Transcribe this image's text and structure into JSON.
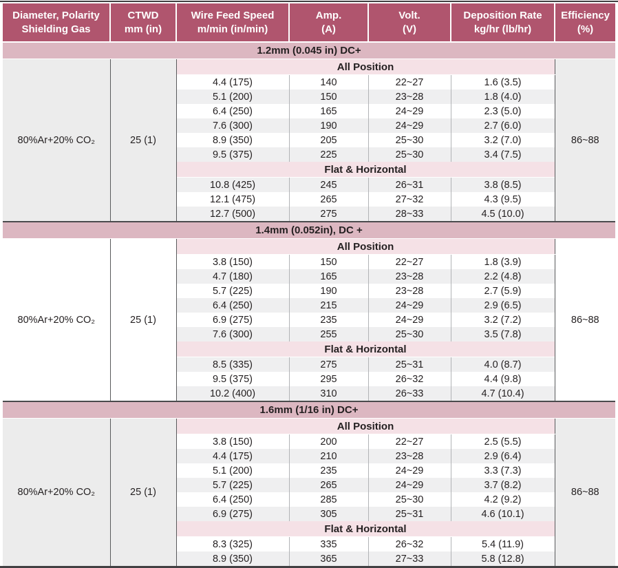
{
  "colors": {
    "header_bg": "#b0556e",
    "header_text": "#ffffff",
    "section_band_bg": "#dcb7c1",
    "position_band_bg": "#f5e1e6",
    "row_alt_bg": "#efeff0",
    "side_gray_bg": "#ececec",
    "body_text": "#231f20",
    "frame_line": "#414042",
    "divider_dark": "#58595b",
    "divider_light": "#b1b3b6"
  },
  "columns": [
    {
      "line1": "Diameter, Polarity",
      "line2": "Shielding Gas"
    },
    {
      "line1": "CTWD",
      "line2": "mm (in)"
    },
    {
      "line1": "Wire Feed Speed",
      "line2": "m/min (in/min)"
    },
    {
      "line1": "Amp.",
      "line2": "(A)"
    },
    {
      "line1": "Volt.",
      "line2": "(V)"
    },
    {
      "line1": "Deposition Rate",
      "line2": "kg/hr (lb/hr)"
    },
    {
      "line1": "Efficiency",
      "line2": "(%)"
    }
  ],
  "sections": [
    {
      "title": "1.2mm (0.045 in) DC+",
      "gas": "80%Ar+20% CO₂",
      "ctwd": "25 (1)",
      "efficiency": "86~88",
      "side_shade": "gray",
      "groups": [
        {
          "label": "All Position",
          "first_shade": "white",
          "rows": [
            [
              "4.4 (175)",
              "140",
              "22~27",
              "1.6 (3.5)"
            ],
            [
              "5.1 (200)",
              "150",
              "23~28",
              "1.8 (4.0)"
            ],
            [
              "6.4 (250)",
              "165",
              "24~29",
              "2.3 (5.0)"
            ],
            [
              "7.6 (300)",
              "190",
              "24~29",
              "2.7 (6.0)"
            ],
            [
              "8.9 (350)",
              "205",
              "25~30",
              "3.2 (7.0)"
            ],
            [
              "9.5 (375)",
              "225",
              "25~30",
              "3.4 (7.5)"
            ]
          ]
        },
        {
          "label": "Flat & Horizontal",
          "first_shade": "gray",
          "rows": [
            [
              "10.8 (425)",
              "245",
              "26~31",
              "3.8 (8.5)"
            ],
            [
              "12.1 (475)",
              "265",
              "27~32",
              "4.3 (9.5)"
            ],
            [
              "12.7 (500)",
              "275",
              "28~33",
              "4.5 (10.0)"
            ]
          ]
        }
      ]
    },
    {
      "title": "1.4mm (0.052in), DC +",
      "gas": "80%Ar+20% CO₂",
      "ctwd": "25 (1)",
      "efficiency": "86~88",
      "side_shade": "white",
      "groups": [
        {
          "label": "All Position",
          "first_shade": "white",
          "rows": [
            [
              "3.8 (150)",
              "150",
              "22~27",
              "1.8 (3.9)"
            ],
            [
              "4.7 (180)",
              "165",
              "23~28",
              "2.2 (4.8)"
            ],
            [
              "5.7 (225)",
              "190",
              "23~28",
              "2.7 (5.9)"
            ],
            [
              "6.4 (250)",
              "215",
              "24~29",
              "2.9 (6.5)"
            ],
            [
              "6.9 (275)",
              "235",
              "24~29",
              "3.2 (7.2)"
            ],
            [
              "7.6 (300)",
              "255",
              "25~30",
              "3.5 (7.8)"
            ]
          ]
        },
        {
          "label": "Flat & Horizontal",
          "first_shade": "gray",
          "rows": [
            [
              "8.5 (335)",
              "275",
              "25~31",
              "4.0 (8.7)"
            ],
            [
              "9.5 (375)",
              "295",
              "26~32",
              "4.4 (9.8)"
            ],
            [
              "10.2 (400)",
              "310",
              "26~33",
              "4.7 (10.4)"
            ]
          ]
        }
      ]
    },
    {
      "title": "1.6mm (1/16 in) DC+",
      "gas": "80%Ar+20% CO₂",
      "ctwd": "25 (1)",
      "efficiency": "86~88",
      "side_shade": "gray",
      "groups": [
        {
          "label": "All Position",
          "first_shade": "white",
          "rows": [
            [
              "3.8 (150)",
              "200",
              "22~27",
              "2.5 (5.5)"
            ],
            [
              "4.4 (175)",
              "210",
              "23~28",
              "2.9 (6.4)"
            ],
            [
              "5.1 (200)",
              "235",
              "24~29",
              "3.3 (7.3)"
            ],
            [
              "5.7 (225)",
              "265",
              "24~29",
              "3.7 (8.2)"
            ],
            [
              "6.4 (250)",
              "285",
              "25~30",
              "4.2 (9.2)"
            ],
            [
              "6.9 (275)",
              "305",
              "25~31",
              "4.6 (10.1)"
            ]
          ]
        },
        {
          "label": "Flat & Horizontal",
          "first_shade": "white",
          "rows": [
            [
              "8.3 (325)",
              "335",
              "26~32",
              "5.4 (11.9)"
            ],
            [
              "8.9 (350)",
              "365",
              "27~33",
              "5.8 (12.8)"
            ]
          ]
        }
      ]
    }
  ]
}
